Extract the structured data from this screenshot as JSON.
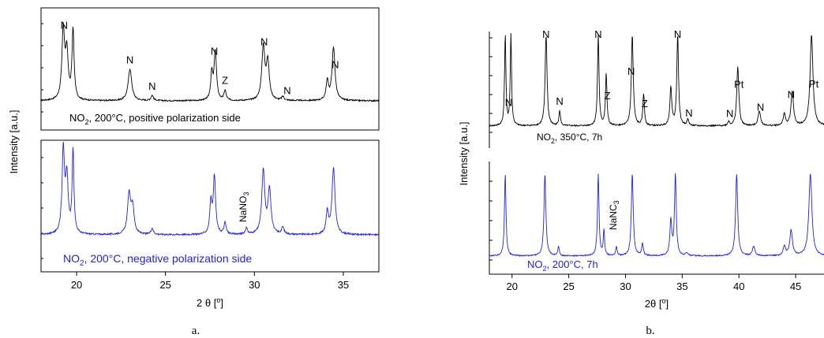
{
  "colors": {
    "black_trace": "#000000",
    "blue_trace": "#2222dd",
    "axis": "#000000",
    "background": "#ffffff"
  },
  "panel_a": {
    "caption": "a.",
    "y_label": "Intensity [a.u.]",
    "x_label": "2 θ [",
    "x_label_degree": "o",
    "x_label_close": "]",
    "top_legend": {
      "pre": "NO",
      "sub": "2",
      "post": ", 200°C, positive polarization side"
    },
    "bottom_legend": {
      "pre": "NO",
      "sub": "2",
      "post": ", 200°C, negative polarization side"
    }
  },
  "panel_b": {
    "caption": "b.",
    "y_label": "Intensity [a.u.]",
    "x_label": "2θ [",
    "x_label_degree": "o",
    "x_label_close": "]",
    "top_legend": {
      "pre": "NO",
      "sub": "2",
      "post": ", 350°C, 7h"
    },
    "bottom_legend": {
      "pre": "NO",
      "sub": "2",
      "post": ", 200°C, 7h"
    }
  },
  "chart_data": [
    {
      "type": "line",
      "panel": "a",
      "xlabel": "2 θ [°]",
      "ylabel": "Intensity [a.u.]",
      "xlim": [
        18,
        37
      ],
      "x_ticks": [
        20,
        25,
        30,
        35
      ],
      "baseline": 0.05,
      "series": [
        {
          "name": "NO2, 200°C, positive polarization side",
          "color": "#000000",
          "peaks": [
            [
              19.25,
              0.92,
              0.09
            ],
            [
              19.45,
              0.6,
              0.09
            ],
            [
              19.8,
              0.92,
              0.07
            ],
            [
              23.0,
              0.42,
              0.12
            ],
            [
              24.25,
              0.07,
              0.08
            ],
            [
              27.6,
              0.35,
              0.07
            ],
            [
              27.8,
              0.65,
              0.08
            ],
            [
              28.35,
              0.13,
              0.07
            ],
            [
              30.5,
              0.7,
              0.1
            ],
            [
              30.75,
              0.5,
              0.1
            ],
            [
              31.6,
              0.05,
              0.08
            ],
            [
              34.1,
              0.25,
              0.08
            ],
            [
              34.45,
              0.7,
              0.1
            ]
          ]
        },
        {
          "name": "NO2, 200°C, negative polarization side",
          "color": "#2222dd",
          "peaks": [
            [
              19.25,
              0.95,
              0.08
            ],
            [
              19.45,
              0.62,
              0.09
            ],
            [
              19.8,
              0.95,
              0.06
            ],
            [
              22.95,
              0.45,
              0.1
            ],
            [
              23.15,
              0.3,
              0.1
            ],
            [
              24.25,
              0.07,
              0.08
            ],
            [
              27.55,
              0.35,
              0.07
            ],
            [
              27.75,
              0.65,
              0.08
            ],
            [
              28.35,
              0.13,
              0.07
            ],
            [
              29.55,
              0.07,
              0.07
            ],
            [
              30.5,
              0.72,
              0.1
            ],
            [
              30.85,
              0.5,
              0.1
            ],
            [
              31.6,
              0.08,
              0.08
            ],
            [
              34.1,
              0.25,
              0.08
            ],
            [
              34.45,
              0.75,
              0.1
            ]
          ]
        }
      ],
      "annotations_top": [
        {
          "label": "N",
          "x": 19.3
        },
        {
          "label": "N",
          "x": 23.0
        },
        {
          "label": "N",
          "x": 24.25
        },
        {
          "label": "N",
          "x": 27.75
        },
        {
          "label": "Z",
          "x": 28.35
        },
        {
          "label": "N",
          "x": 30.55
        },
        {
          "label": "N",
          "x": 31.85
        },
        {
          "label": "N",
          "x": 34.55
        }
      ],
      "annotations_bottom": [
        {
          "label": "NaNO",
          "sub": "3",
          "x": 29.55
        }
      ]
    },
    {
      "type": "line",
      "panel": "b",
      "xlabel": "2θ [°]",
      "ylabel": "Intensity [a.u.]",
      "xlim": [
        18,
        47.5
      ],
      "x_ticks": [
        20,
        25,
        30,
        35,
        40,
        45
      ],
      "baseline": 0.08,
      "series": [
        {
          "name": "NO2, 350°C, 7h",
          "color": "#000000",
          "peaks": [
            [
              19.4,
              1.2,
              0.07
            ],
            [
              19.9,
              1.2,
              0.07
            ],
            [
              23.0,
              1.2,
              0.1
            ],
            [
              24.2,
              0.2,
              0.08
            ],
            [
              27.6,
              1.2,
              0.08
            ],
            [
              28.3,
              0.68,
              0.08
            ],
            [
              30.6,
              1.2,
              0.1
            ],
            [
              31.6,
              0.42,
              0.08
            ],
            [
              34.0,
              0.5,
              0.1
            ],
            [
              34.6,
              1.2,
              0.09
            ],
            [
              35.5,
              0.08,
              0.1
            ],
            [
              39.1,
              0.05,
              0.1
            ],
            [
              39.9,
              0.78,
              0.11
            ],
            [
              41.8,
              0.2,
              0.13
            ],
            [
              44.0,
              0.15,
              0.12
            ],
            [
              44.7,
              0.45,
              0.13
            ],
            [
              46.4,
              1.2,
              0.15
            ]
          ]
        },
        {
          "name": "NO2, 200°C, 7h",
          "color": "#2222dd",
          "peaks": [
            [
              19.4,
              1.3,
              0.08
            ],
            [
              22.9,
              1.3,
              0.1
            ],
            [
              24.1,
              0.15,
              0.08
            ],
            [
              27.6,
              1.3,
              0.08
            ],
            [
              28.1,
              0.4,
              0.07
            ],
            [
              29.2,
              0.15,
              0.07
            ],
            [
              30.6,
              1.3,
              0.1
            ],
            [
              31.5,
              0.2,
              0.08
            ],
            [
              34.0,
              0.55,
              0.1
            ],
            [
              34.4,
              1.3,
              0.09
            ],
            [
              35.4,
              0.05,
              0.1
            ],
            [
              39.8,
              1.3,
              0.11
            ],
            [
              41.3,
              0.15,
              0.13
            ],
            [
              44.0,
              0.15,
              0.12
            ],
            [
              44.6,
              0.4,
              0.14
            ],
            [
              46.3,
              1.3,
              0.16
            ]
          ]
        }
      ],
      "annotations_top": [
        {
          "label": "N",
          "x": 19.7
        },
        {
          "label": "N",
          "x": 23.0
        },
        {
          "label": "N",
          "x": 24.2
        },
        {
          "label": "N",
          "x": 27.6
        },
        {
          "label": "Z",
          "x": 28.4
        },
        {
          "label": "N",
          "x": 30.5
        },
        {
          "label": "Z",
          "x": 31.7
        },
        {
          "label": "N",
          "x": 34.6
        },
        {
          "label": "N",
          "x": 35.6
        },
        {
          "label": "N",
          "x": 39.2
        },
        {
          "label": "Pt",
          "x": 40.0
        },
        {
          "label": "N",
          "x": 41.9
        },
        {
          "label": "N",
          "x": 44.6
        },
        {
          "label": "Pt",
          "x": 46.6
        }
      ],
      "annotations_bottom": [
        {
          "label": "NaNC",
          "sub": "3",
          "x": 29.2
        }
      ]
    }
  ]
}
